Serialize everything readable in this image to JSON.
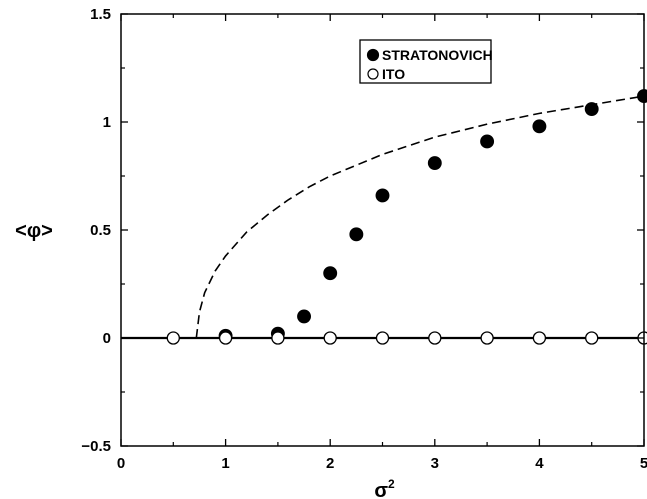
{
  "chart_data": {
    "type": "scatter",
    "xlabel": "σ",
    "xlabel_sup": "2",
    "ylabel": "<φ>",
    "xlim": [
      0,
      5
    ],
    "ylim": [
      -0.5,
      1.5
    ],
    "x_ticks": [
      0,
      1,
      2,
      3,
      4,
      5
    ],
    "x_tick_labels": [
      "0",
      "1",
      "2",
      "3",
      "4",
      "5"
    ],
    "y_ticks": [
      -0.5,
      0,
      0.5,
      1,
      1.5
    ],
    "y_tick_labels": [
      "-0.5",
      "0",
      "0.5",
      "1",
      "1.5"
    ],
    "grid": false,
    "legend_position": "top-right",
    "series": [
      {
        "name": "STRATONOVICH",
        "marker": "filled-circle",
        "color": "#000000",
        "x": [
          1.0,
          1.5,
          1.75,
          2.0,
          2.25,
          2.5,
          3.0,
          3.5,
          4.0,
          4.5,
          5.0
        ],
        "y": [
          0.01,
          0.02,
          0.1,
          0.3,
          0.48,
          0.66,
          0.81,
          0.91,
          0.98,
          1.06,
          1.12
        ]
      },
      {
        "name": "ITO",
        "marker": "open-circle",
        "color": "#000000",
        "x": [
          0.5,
          1.0,
          1.5,
          2.0,
          2.5,
          3.0,
          3.5,
          4.0,
          4.5,
          5.0
        ],
        "y": [
          0,
          0,
          0,
          0,
          0,
          0,
          0,
          0,
          0,
          0
        ]
      }
    ],
    "curves": [
      {
        "style": "dashed",
        "x": [
          0.72,
          0.75,
          0.8,
          0.9,
          1.0,
          1.2,
          1.4,
          1.6,
          1.8,
          2.0,
          2.25,
          2.5,
          3.0,
          3.5,
          4.0,
          4.5,
          5.0
        ],
        "y": [
          0.0,
          0.12,
          0.21,
          0.31,
          0.38,
          0.49,
          0.57,
          0.64,
          0.7,
          0.75,
          0.8,
          0.85,
          0.93,
          0.99,
          1.04,
          1.08,
          1.12
        ]
      },
      {
        "style": "solid",
        "x": [
          0,
          5
        ],
        "y": [
          0,
          0
        ]
      }
    ]
  }
}
